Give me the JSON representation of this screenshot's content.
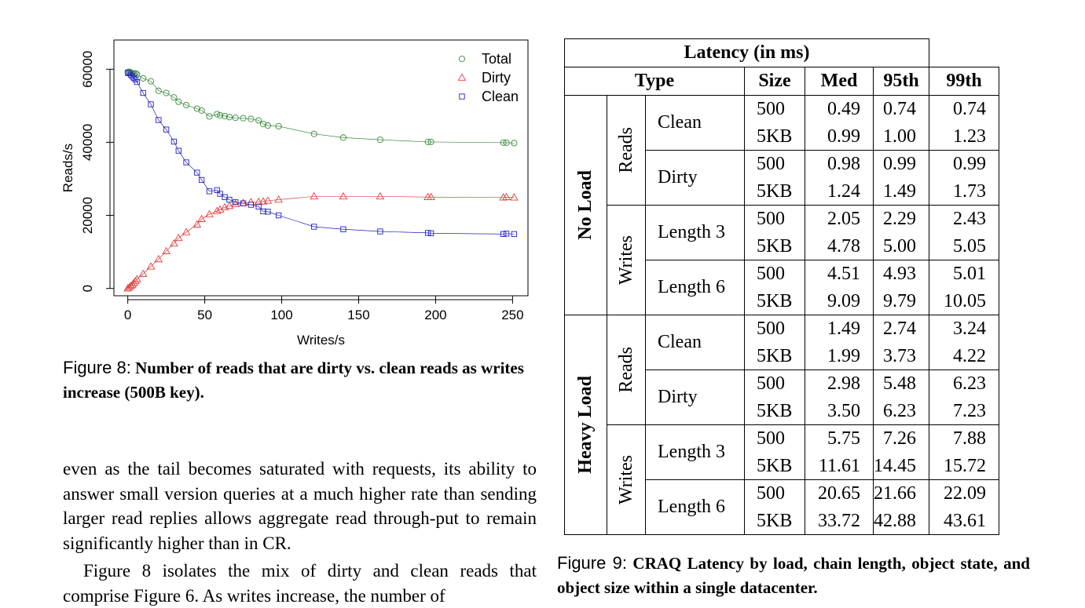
{
  "chart_data": {
    "type": "scatter",
    "xlabel": "Writes/s",
    "ylabel": "Reads/s",
    "xlim": [
      -9,
      260
    ],
    "ylim": [
      -2000,
      68000
    ],
    "xticks": [
      0,
      50,
      100,
      150,
      200,
      250
    ],
    "yticks": [
      0,
      20000,
      40000,
      60000
    ],
    "legend": "top-right",
    "series": [
      {
        "name": "Total",
        "marker": "circle",
        "color": "#3a8a3a",
        "x": [
          0,
          1,
          2,
          3,
          4,
          5,
          6,
          10,
          15,
          20,
          25,
          30,
          33,
          38,
          45,
          48,
          53,
          58,
          60,
          63,
          66,
          70,
          75,
          80,
          85,
          88,
          91,
          98,
          121,
          140,
          164,
          195,
          197,
          244,
          246,
          251
        ],
        "y": [
          59200,
          59300,
          59100,
          58900,
          58700,
          58900,
          58600,
          57500,
          56700,
          54100,
          53500,
          52300,
          51100,
          50200,
          49200,
          48700,
          47100,
          47700,
          47400,
          47200,
          46900,
          46700,
          46600,
          46400,
          46000,
          45000,
          44600,
          44400,
          42300,
          41300,
          40700,
          40100,
          40100,
          39900,
          39900,
          39800
        ]
      },
      {
        "name": "Dirty",
        "marker": "triangle",
        "color": "#e04040",
        "x": [
          0,
          1,
          2,
          3,
          4,
          5,
          6,
          10,
          15,
          20,
          25,
          30,
          33,
          38,
          45,
          48,
          53,
          58,
          60,
          63,
          66,
          70,
          75,
          80,
          85,
          88,
          91,
          98,
          121,
          140,
          164,
          195,
          197,
          244,
          246,
          251
        ],
        "y": [
          0,
          300,
          700,
          1000,
          1500,
          2000,
          2500,
          4000,
          6000,
          8000,
          10200,
          12300,
          13800,
          15400,
          17500,
          19000,
          20300,
          21200,
          21600,
          22200,
          22600,
          23100,
          23400,
          23600,
          23700,
          23800,
          24000,
          24300,
          25200,
          25200,
          25200,
          25000,
          25000,
          24900,
          25000,
          24900
        ]
      },
      {
        "name": "Clean",
        "marker": "square",
        "color": "#2020c0",
        "x": [
          0,
          1,
          2,
          3,
          4,
          5,
          6,
          10,
          15,
          20,
          25,
          30,
          33,
          38,
          45,
          48,
          53,
          58,
          60,
          63,
          66,
          70,
          75,
          80,
          85,
          88,
          91,
          98,
          121,
          140,
          164,
          195,
          197,
          244,
          246,
          251
        ],
        "y": [
          59000,
          58900,
          58500,
          58000,
          57600,
          57200,
          56500,
          53500,
          50400,
          46100,
          43500,
          40200,
          37700,
          34500,
          31700,
          29700,
          26600,
          26900,
          25900,
          25000,
          24300,
          23600,
          23300,
          22900,
          22400,
          21100,
          21000,
          20000,
          16900,
          16200,
          15600,
          15200,
          15100,
          14900,
          15000,
          14900
        ]
      }
    ]
  },
  "figure8_caption": {
    "label": "Figure 8:",
    "text": "Number of reads that are dirty vs. clean reads as writes increase (500B key)."
  },
  "body_paragraphs": [
    "even as the tail becomes saturated with requests, its ability to answer small version queries at a much higher rate than sending larger read replies allows aggregate read through-put to remain significantly higher than in CR.",
    "Figure 8 isolates the mix of dirty and clean reads that comprise Figure 6.  As writes increase, the number of"
  ],
  "table": {
    "title": "Latency (in ms)",
    "headers": {
      "type": "Type",
      "size": "Size",
      "med": "Med",
      "p95": "95th",
      "p99": "99th"
    },
    "groups": [
      {
        "load": "No Load",
        "ops": [
          {
            "op": "Reads",
            "rows": [
              {
                "sub": "Clean",
                "sizes": [
                  "500",
                  "5KB"
                ],
                "med": [
                  "0.49",
                  "0.99"
                ],
                "p95": [
                  "0.74",
                  "1.00"
                ],
                "p99": [
                  "0.74",
                  "1.23"
                ]
              },
              {
                "sub": "Dirty",
                "sizes": [
                  "500",
                  "5KB"
                ],
                "med": [
                  "0.98",
                  "1.24"
                ],
                "p95": [
                  "0.99",
                  "1.49"
                ],
                "p99": [
                  "0.99",
                  "1.73"
                ]
              }
            ]
          },
          {
            "op": "Writes",
            "rows": [
              {
                "sub": "Length 3",
                "sizes": [
                  "500",
                  "5KB"
                ],
                "med": [
                  "2.05",
                  "4.78"
                ],
                "p95": [
                  "2.29",
                  "5.00"
                ],
                "p99": [
                  "2.43",
                  "5.05"
                ]
              },
              {
                "sub": "Length 6",
                "sizes": [
                  "500",
                  "5KB"
                ],
                "med": [
                  "4.51",
                  "9.09"
                ],
                "p95": [
                  "4.93",
                  "9.79"
                ],
                "p99": [
                  "5.01",
                  "10.05"
                ]
              }
            ]
          }
        ]
      },
      {
        "load": "Heavy Load",
        "ops": [
          {
            "op": "Reads",
            "rows": [
              {
                "sub": "Clean",
                "sizes": [
                  "500",
                  "5KB"
                ],
                "med": [
                  "1.49",
                  "1.99"
                ],
                "p95": [
                  "2.74",
                  "3.73"
                ],
                "p99": [
                  "3.24",
                  "4.22"
                ]
              },
              {
                "sub": "Dirty",
                "sizes": [
                  "500",
                  "5KB"
                ],
                "med": [
                  "2.98",
                  "3.50"
                ],
                "p95": [
                  "5.48",
                  "6.23"
                ],
                "p99": [
                  "6.23",
                  "7.23"
                ]
              }
            ]
          },
          {
            "op": "Writes",
            "rows": [
              {
                "sub": "Length 3",
                "sizes": [
                  "500",
                  "5KB"
                ],
                "med": [
                  "5.75",
                  "11.61"
                ],
                "p95": [
                  "7.26",
                  "14.45"
                ],
                "p99": [
                  "7.88",
                  "15.72"
                ]
              },
              {
                "sub": "Length 6",
                "sizes": [
                  "500",
                  "5KB"
                ],
                "med": [
                  "20.65",
                  "33.72"
                ],
                "p95": [
                  "21.66",
                  "42.88"
                ],
                "p99": [
                  "22.09",
                  "43.61"
                ]
              }
            ]
          }
        ]
      }
    ]
  },
  "figure9_caption": {
    "label": "Figure 9:",
    "text": "CRAQ Latency by load, chain length, object state, and object size within a single datacenter."
  }
}
